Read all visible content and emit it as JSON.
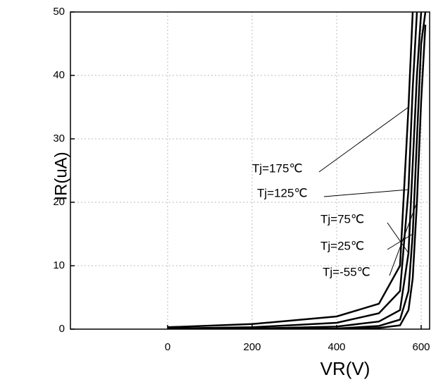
{
  "chart_data": {
    "type": "line",
    "x_label": "VR(V)",
    "y_label": "IR(uA)",
    "x": [
      0,
      200,
      400,
      500,
      550,
      570,
      580,
      590,
      600,
      610
    ],
    "series": [
      {
        "name": "Tj=175℃",
        "color": "#000000",
        "values": [
          0.3,
          0.8,
          2,
          4,
          10,
          35,
          50,
          null,
          null,
          null
        ]
      },
      {
        "name": "Tj=125℃",
        "color": "#000000",
        "values": [
          0.1,
          0.3,
          1,
          2.5,
          6,
          22,
          38,
          50,
          null,
          null
        ]
      },
      {
        "name": "Tj=75℃",
        "color": "#000000",
        "values": [
          0,
          0.1,
          0.4,
          1.2,
          3,
          12,
          26,
          40,
          50,
          null
        ]
      },
      {
        "name": "Tj=25℃",
        "color": "#000000",
        "values": [
          0,
          0,
          0.1,
          0.5,
          1.5,
          6,
          15,
          30,
          45,
          50
        ]
      },
      {
        "name": "Tj=-55℃",
        "color": "#000000",
        "values": [
          0,
          0,
          0,
          0.2,
          0.6,
          3,
          8,
          20,
          36,
          48
        ]
      }
    ],
    "xlim": [
      -230,
      620
    ],
    "ylim": [
      0,
      50
    ],
    "xticks": [
      0,
      200,
      400,
      600
    ],
    "yticks": [
      0,
      10,
      20,
      30,
      40,
      50
    ],
    "grid": true
  }
}
